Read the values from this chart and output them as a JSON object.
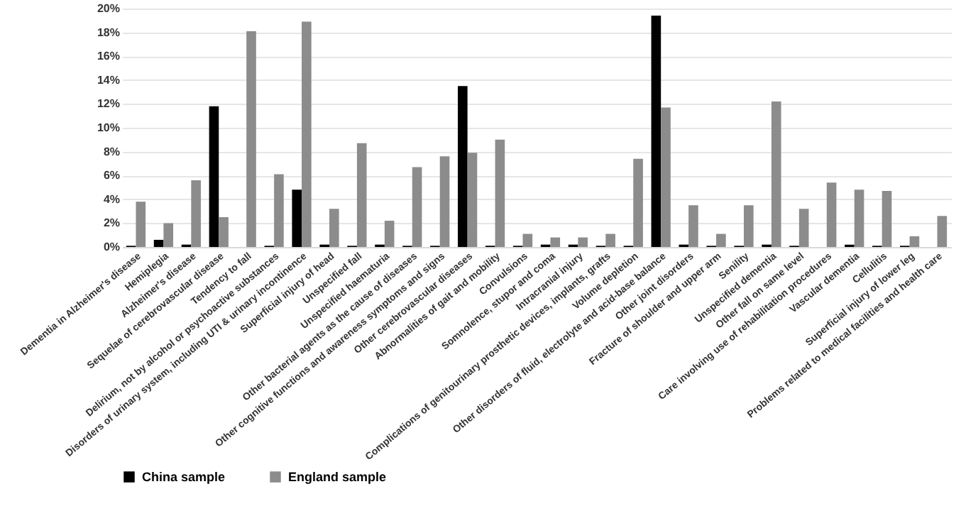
{
  "chart_data": {
    "type": "bar",
    "categories": [
      "Dementia in Alzheimer's disease",
      "Hemiplegia",
      "Alzheimer's disease",
      "Sequelae of cerebrovascular disease",
      "Tendency to fall",
      "Delirium, not by alcohol or psychoactive substances",
      "Disorders of urinary system, including UTI & urinary incontinence",
      "Superficial injury of head",
      "Unspecified fall",
      "Unspecified haematuria",
      "Other bacterial agents as the cause of diseases",
      "Other cognitive functions and awareness symptoms and signs",
      "Other cerebrovascular diseases",
      "Abnormalities of gait and mobility",
      "Convulsions",
      "Somnolence, stupor and coma",
      "Intracranial injury",
      "Complications of genitourinary prosthetic devices, implants, grafts",
      "Volume depletion",
      "Other disorders of fluid, electrolyte and acid-base balance",
      "Other joint disorders",
      "Fracture of shoulder and upper arm",
      "Senility",
      "Unspecified dementia",
      "Other fall on same level",
      "Care involving use of rehabilitation procedures",
      "Vascular dementia",
      "Cellulitis",
      "Superficial injury of lower leg",
      "Problems related to medical facilities and health care"
    ],
    "series": [
      {
        "name": "China sample",
        "color": "#000000",
        "values": [
          0.1,
          0.6,
          0.2,
          11.8,
          0,
          0.1,
          4.8,
          0.2,
          0.1,
          0.2,
          0.1,
          0.1,
          13.5,
          0.1,
          0.1,
          0.2,
          0.2,
          0.1,
          0.1,
          19.4,
          0.2,
          0.1,
          0.1,
          0.2,
          0.1,
          0,
          0.2,
          0.1,
          0.1,
          0
        ]
      },
      {
        "name": "England sample",
        "color": "#8c8c8c",
        "values": [
          3.8,
          2.0,
          5.6,
          2.5,
          18.1,
          6.1,
          18.9,
          3.2,
          8.7,
          2.2,
          6.7,
          7.6,
          7.9,
          9.0,
          1.1,
          0.8,
          0.8,
          1.1,
          7.4,
          11.7,
          3.5,
          1.1,
          3.5,
          12.2,
          3.2,
          5.4,
          4.8,
          4.7,
          0.9,
          2.6
        ]
      }
    ],
    "ylim": [
      0,
      20
    ],
    "yticks": [
      {
        "value": 0,
        "label": "0%"
      },
      {
        "value": 2,
        "label": "2%"
      },
      {
        "value": 4,
        "label": "4%"
      },
      {
        "value": 6,
        "label": "6%"
      },
      {
        "value": 8,
        "label": "8%"
      },
      {
        "value": 10,
        "label": "10%"
      },
      {
        "value": 12,
        "label": "12%"
      },
      {
        "value": 14,
        "label": "14%"
      },
      {
        "value": 16,
        "label": "16%"
      },
      {
        "value": 18,
        "label": "18%"
      },
      {
        "value": 20,
        "label": "20%"
      }
    ],
    "grid": "y",
    "legend": "bottom"
  }
}
